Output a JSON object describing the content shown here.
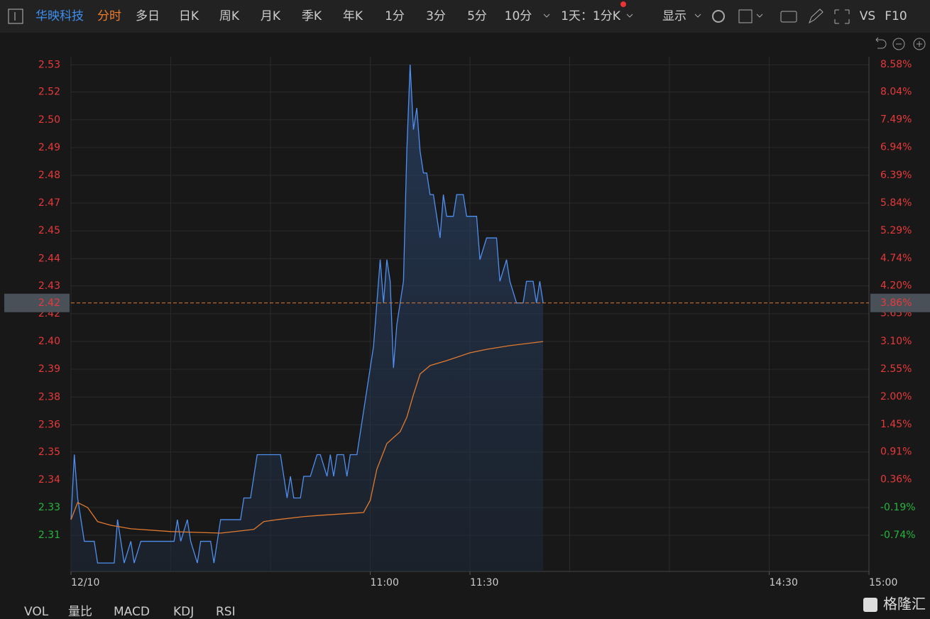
{
  "toolbar": {
    "items": [
      "华映科技",
      "分时",
      "多日",
      "日K",
      "周K",
      "月K",
      "季K",
      "年K",
      "1分",
      "3分",
      "5分",
      "10分",
      "1天：1分K",
      "显示",
      "VS",
      "F10"
    ]
  },
  "indicators": [
    "VOL",
    "量比",
    "MACD",
    "KDJ",
    "RSI"
  ],
  "logo": "格隆汇",
  "chart_data": {
    "type": "line",
    "xlim": [
      0,
      240
    ],
    "xticks": [
      {
        "value": 0,
        "label": "12/10"
      },
      {
        "value": 90,
        "label": "11:00"
      },
      {
        "value": 120,
        "label": "11:30"
      },
      {
        "value": 210,
        "label": "14:30"
      },
      {
        "value": 240,
        "label": "15:00"
      }
    ],
    "x_gridlines": [
      0,
      30,
      60,
      90,
      120,
      150,
      180,
      210,
      240
    ],
    "ylim": [
      2.2961,
      2.5336
    ],
    "yticks": [
      {
        "value": 2.52991,
        "label": "2.53"
      },
      {
        "value": 2.51733,
        "label": "2.52"
      },
      {
        "value": 2.50452,
        "label": "2.50"
      },
      {
        "value": 2.4917,
        "label": "2.49"
      },
      {
        "value": 2.47889,
        "label": "2.48"
      },
      {
        "value": 2.46607,
        "label": "2.47"
      },
      {
        "value": 2.45326,
        "label": "2.45"
      },
      {
        "value": 2.44044,
        "label": "2.44"
      },
      {
        "value": 2.42786,
        "label": "2.43"
      },
      {
        "value": 2.41505,
        "label": "2.42"
      },
      {
        "value": 2.40223,
        "label": "2.40"
      },
      {
        "value": 2.38942,
        "label": "2.39"
      },
      {
        "value": 2.3766,
        "label": "2.38"
      },
      {
        "value": 2.36379,
        "label": "2.36"
      },
      {
        "value": 2.3512,
        "label": "2.35"
      },
      {
        "value": 2.33839,
        "label": "2.34"
      },
      {
        "value": 2.32557,
        "label": "2.33"
      },
      {
        "value": 2.31276,
        "label": "2.31"
      }
    ],
    "y2lim": [
      -1.457,
      8.735
    ],
    "y2ticks": [
      {
        "value": 8.58,
        "label": "8.58%"
      },
      {
        "value": 8.04,
        "label": "8.04%"
      },
      {
        "value": 7.49,
        "label": "7.49%"
      },
      {
        "value": 6.94,
        "label": "6.94%"
      },
      {
        "value": 6.39,
        "label": "6.39%"
      },
      {
        "value": 5.84,
        "label": "5.84%"
      },
      {
        "value": 5.29,
        "label": "5.29%"
      },
      {
        "value": 4.74,
        "label": "4.74%"
      },
      {
        "value": 4.2,
        "label": "4.20%"
      },
      {
        "value": 3.65,
        "label": "3.65%"
      },
      {
        "value": 3.1,
        "label": "3.10%"
      },
      {
        "value": 2.55,
        "label": "2.55%"
      },
      {
        "value": 2.0,
        "label": "2.00%"
      },
      {
        "value": 1.45,
        "label": "1.45%"
      },
      {
        "value": 0.91,
        "label": "0.91%"
      },
      {
        "value": 0.36,
        "label": "0.36%"
      },
      {
        "value": -0.19,
        "label": "-0.19%"
      },
      {
        "value": -0.74,
        "label": "-0.74%"
      }
    ],
    "up_color": "#e8393a",
    "down_color": "#27b43e",
    "grid": true,
    "current": {
      "value": 2.42,
      "label": "2.42",
      "pct": 3.86,
      "pct_label": "3.86%",
      "color": "#e07a30"
    },
    "series": [
      {
        "color": "#4f8ff0",
        "fill": true,
        "x": [
          0,
          1,
          2,
          4,
          7,
          8,
          13,
          14,
          16,
          18,
          19,
          21,
          31,
          32,
          33,
          35,
          36,
          38,
          39,
          42,
          43,
          45,
          51,
          52,
          54,
          56,
          63,
          65,
          66,
          67,
          69,
          70,
          72,
          74,
          75,
          77,
          78,
          79,
          80,
          82,
          83,
          84,
          86,
          88,
          90,
          91,
          93,
          94,
          95,
          96,
          97,
          98,
          100,
          101,
          102,
          103,
          104,
          105,
          106,
          107,
          108,
          109,
          111,
          112,
          113,
          115,
          116,
          118,
          119,
          122,
          123,
          125,
          128,
          129,
          131,
          132,
          134,
          136,
          137,
          139,
          140,
          141,
          142
        ],
        "values": [
          2.32,
          2.35,
          2.33,
          2.31,
          2.31,
          2.3,
          2.3,
          2.32,
          2.3,
          2.31,
          2.3,
          2.31,
          2.31,
          2.32,
          2.31,
          2.32,
          2.31,
          2.3,
          2.31,
          2.31,
          2.3,
          2.32,
          2.32,
          2.33,
          2.33,
          2.35,
          2.35,
          2.33,
          2.34,
          2.33,
          2.33,
          2.34,
          2.34,
          2.35,
          2.35,
          2.34,
          2.35,
          2.34,
          2.35,
          2.35,
          2.34,
          2.35,
          2.35,
          2.37,
          2.39,
          2.4,
          2.44,
          2.42,
          2.44,
          2.43,
          2.39,
          2.41,
          2.43,
          2.49,
          2.53,
          2.5,
          2.51,
          2.49,
          2.48,
          2.48,
          2.47,
          2.47,
          2.45,
          2.47,
          2.46,
          2.46,
          2.47,
          2.47,
          2.46,
          2.46,
          2.44,
          2.45,
          2.45,
          2.43,
          2.44,
          2.43,
          2.42,
          2.42,
          2.43,
          2.43,
          2.42,
          2.43,
          2.42
        ]
      },
      {
        "color": "#e07a30",
        "fill": false,
        "x": [
          0,
          2,
          5,
          8,
          12,
          18,
          30,
          45,
          55,
          58,
          62,
          70,
          75,
          88,
          90,
          92,
          95,
          99,
          101,
          103,
          105,
          108,
          113,
          120,
          125,
          132,
          142
        ],
        "values": [
          2.32,
          2.3279,
          2.3256,
          2.3191,
          2.3174,
          2.3158,
          2.3145,
          2.3138,
          2.3155,
          2.3191,
          2.32,
          2.3214,
          2.322,
          2.3233,
          2.3289,
          2.3433,
          2.3551,
          2.3606,
          2.3672,
          2.3777,
          2.3872,
          2.3911,
          2.3934,
          2.397,
          2.3986,
          2.4003,
          2.4022
        ]
      }
    ]
  }
}
